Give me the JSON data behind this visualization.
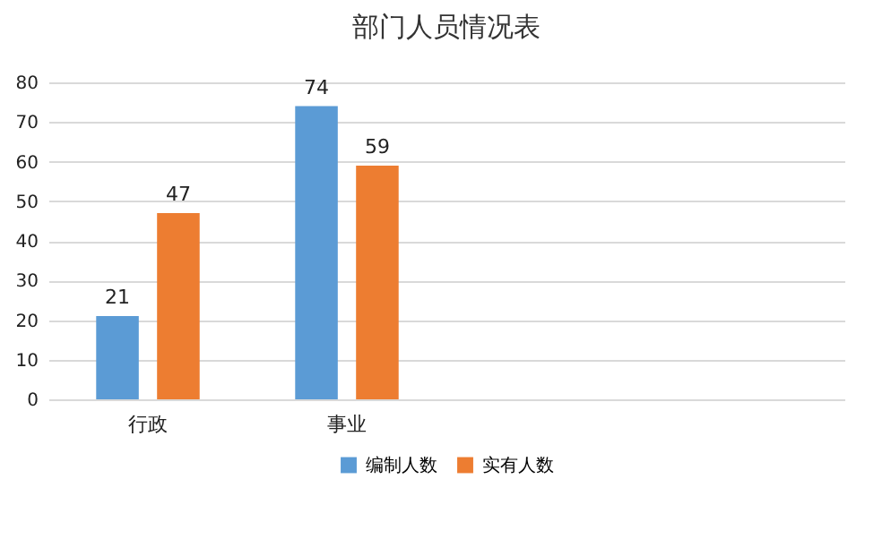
{
  "chart_data": {
    "type": "bar",
    "title": "部门人员情况表",
    "categories": [
      "行政",
      "事业",
      null,
      null
    ],
    "series": [
      {
        "name": "编制人数",
        "color": "#5b9bd5",
        "values": [
          21,
          74,
          null,
          null
        ]
      },
      {
        "name": "实有人数",
        "color": "#ed7d31",
        "values": [
          47,
          59,
          null,
          null
        ]
      }
    ],
    "ylim": [
      0,
      80
    ],
    "yticks": [
      0,
      10,
      20,
      30,
      40,
      50,
      60,
      70,
      80
    ],
    "grid": "y",
    "data_labels": true,
    "legend": "bottom"
  }
}
